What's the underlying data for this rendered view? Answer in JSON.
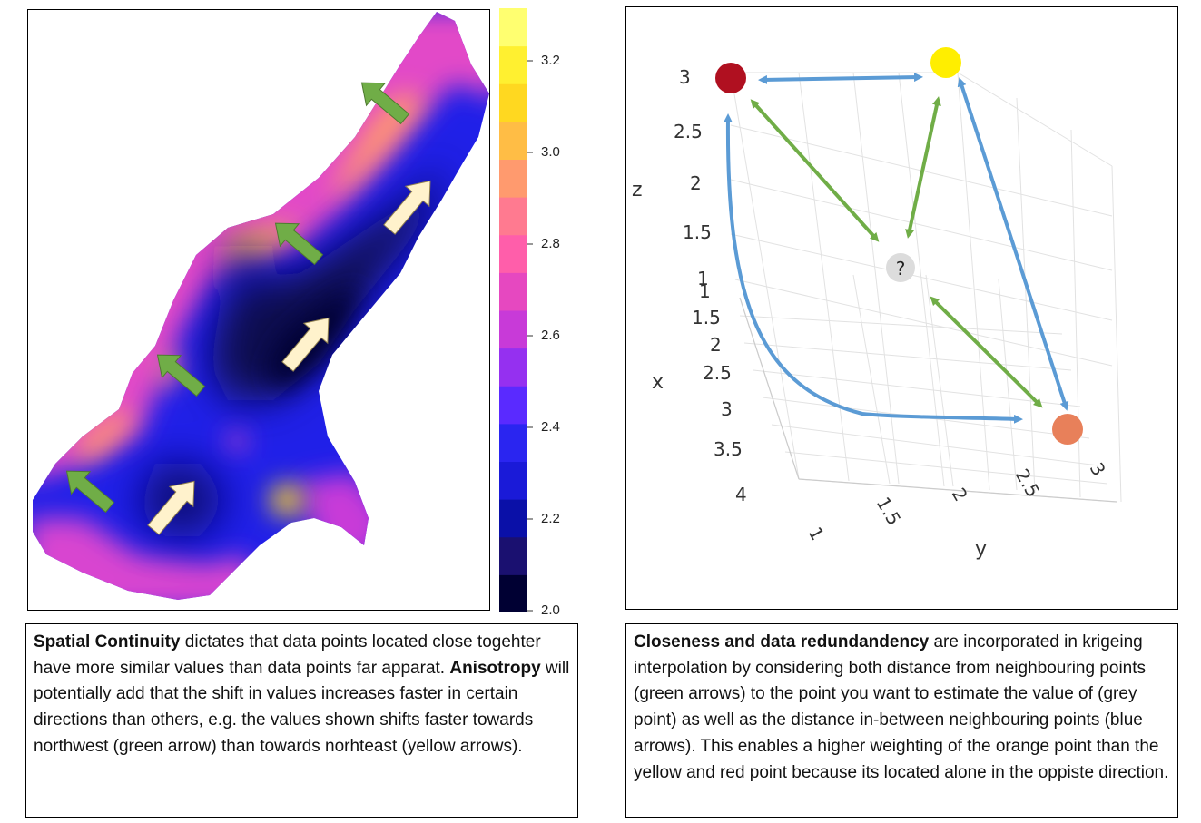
{
  "heatmap": {
    "colorbar_ticks": [
      "2.0",
      "2.2",
      "2.4",
      "2.6",
      "2.8",
      "3.0",
      "3.2"
    ],
    "colorbar_colors": [
      "#000033",
      "#1a1070",
      "#0a10a8",
      "#1a1ad8",
      "#2a25f0",
      "#5a2aff",
      "#9530f0",
      "#c83ad8",
      "#e648c0",
      "#ff5eaa",
      "#ff7a90",
      "#ff9a6e",
      "#ffbd45",
      "#ffd820",
      "#fff030",
      "#ffff70"
    ]
  },
  "caption_left": {
    "t1_bold": "Spatial Continuity",
    "t2": " dictates that data points located close togehter have more similar values than data points far apparat. ",
    "t3_bold": "Anisotropy",
    "t4": " will potentially add that the shift in values increases faster in certain directions than others, e.g. the values shown shifts faster towards northwest (green arrow) than towards norhteast (yellow arrows)."
  },
  "plot3d": {
    "z_axis_title": "z",
    "x_axis_title": "x",
    "y_axis_title": "y",
    "z_ticks": [
      "3",
      "2.5",
      "2",
      "1.5",
      "1"
    ],
    "x_ticks": [
      "1",
      "1.5",
      "2",
      "2.5",
      "3",
      "3.5",
      "4"
    ],
    "y_ticks": [
      "1",
      "1.5",
      "2",
      "2.5",
      "3"
    ],
    "unknown_point_label": "?",
    "point_colors": {
      "red": "#b01020",
      "yellow": "#ffee00",
      "orange": "#e8805a",
      "grey": "#dcdcdc"
    },
    "arrow_colors": {
      "green": "#70ad47",
      "blue": "#5b9bd5"
    }
  },
  "caption_right": {
    "t1_bold": "Closeness and data redundandency",
    "t2": " are incorporated in krigeing interpolation by considering both distance from neighbouring points (green arrows) to the point you want to estimate the value of (grey point) as well as the distance in-between neighbouring points (blue arrows). This enables a higher weighting of the orange point than the yellow and red point because its located alone in the oppiste direction."
  }
}
